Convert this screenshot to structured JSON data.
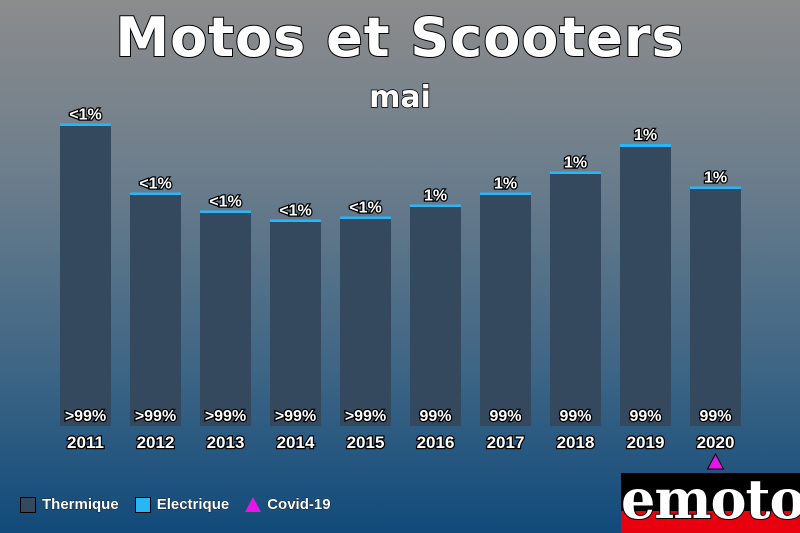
{
  "title": "Motos et Scooters",
  "subtitle": "mai",
  "legend": {
    "thermique": "Thermique",
    "electrique": "Electrique",
    "covid": "Covid-19"
  },
  "logo_text": "emoto",
  "colors": {
    "thermique": "#34495e",
    "electrique": "#29b6f6",
    "covid": "#e815e8",
    "logo_bg": "#000000",
    "logo_red": "#e8000f"
  },
  "chart_data": {
    "type": "bar",
    "stacked": true,
    "categories": [
      "2011",
      "2012",
      "2013",
      "2014",
      "2015",
      "2016",
      "2017",
      "2018",
      "2019",
      "2020"
    ],
    "series": [
      {
        "name": "Thermique",
        "values": [
          100,
          77,
          71,
          68,
          69,
          73,
          77,
          84,
          93,
          79
        ]
      },
      {
        "name": "Electrique",
        "values": [
          0.3,
          0.3,
          0.3,
          0.3,
          0.3,
          0.4,
          0.5,
          0.7,
          1,
          0.8
        ]
      }
    ],
    "bottom_labels": [
      ">99%",
      ">99%",
      ">99%",
      ">99%",
      ">99%",
      "99%",
      "99%",
      "99%",
      "99%",
      "99%"
    ],
    "top_labels": [
      "<1%",
      "<1%",
      "<1%",
      "<1%",
      "<1%",
      "1%",
      "1%",
      "1%",
      "1%",
      "1%"
    ],
    "annotations": [
      {
        "category": "2020",
        "marker": "triangle",
        "label": "Covid-19"
      }
    ],
    "ylim": [
      0,
      100
    ],
    "grid": false,
    "legend_position": "bottom-left"
  }
}
